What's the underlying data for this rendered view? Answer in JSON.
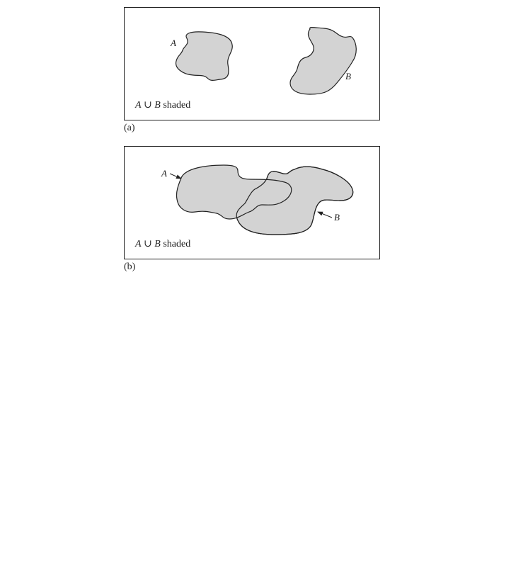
{
  "panels": [
    {
      "set_a_label": "A",
      "set_b_label": "B",
      "caption_left": "A",
      "caption_op": "∪",
      "caption_right": "B",
      "caption_text": "shaded",
      "sublabel": "(a)"
    },
    {
      "set_a_label": "A",
      "set_b_label": "B",
      "caption_left": "A",
      "caption_op": "∪",
      "caption_right": "B",
      "caption_text": "shaded",
      "sublabel": "(b)"
    }
  ],
  "colors": {
    "fill": "#d3d3d3",
    "stroke": "#222222"
  }
}
